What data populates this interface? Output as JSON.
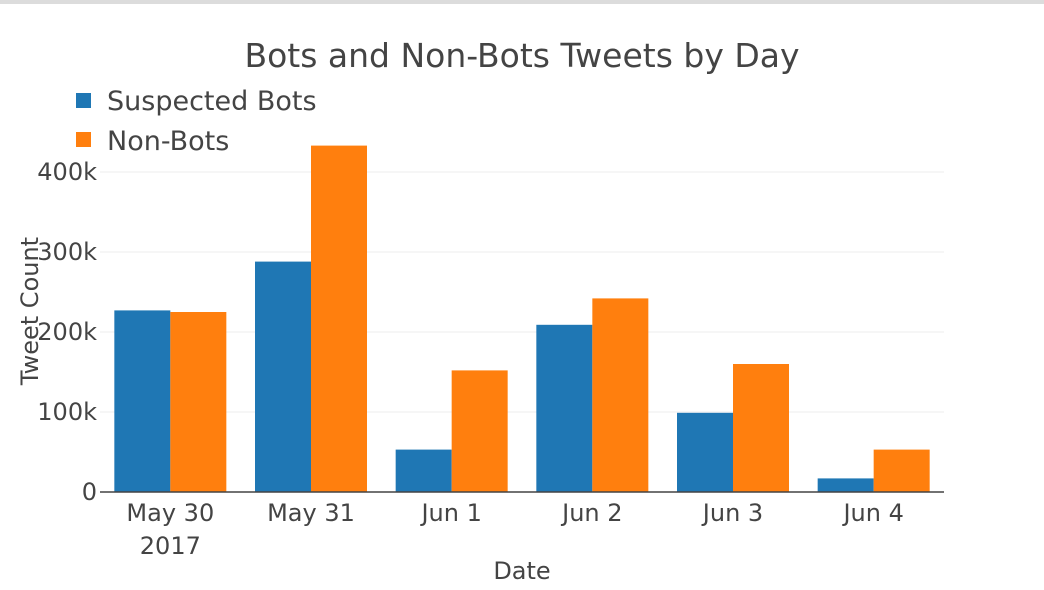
{
  "chart_data": {
    "type": "bar",
    "title": "Bots and Non-Bots Tweets by Day",
    "xlabel": "Date",
    "ylabel": "Tweet Count",
    "categories": [
      "May 30",
      "May 31",
      "Jun 1",
      "Jun 2",
      "Jun 3",
      "Jun 4"
    ],
    "category_sublabels": [
      "2017",
      "",
      "",
      "",
      "",
      ""
    ],
    "series": [
      {
        "name": "Suspected Bots",
        "color": "#1f77b4",
        "values": [
          227000,
          288000,
          53000,
          209000,
          99000,
          17000
        ]
      },
      {
        "name": "Non-Bots",
        "color": "#ff7f0e",
        "values": [
          225000,
          433000,
          152000,
          242000,
          160000,
          53000
        ]
      }
    ],
    "ylim": [
      0,
      425000
    ],
    "yticks": [
      0,
      100000,
      200000,
      300000,
      400000
    ],
    "ytick_labels": [
      "0",
      "100k",
      "200k",
      "300k",
      "400k"
    ],
    "grid": true,
    "legend_position": "top-left"
  }
}
